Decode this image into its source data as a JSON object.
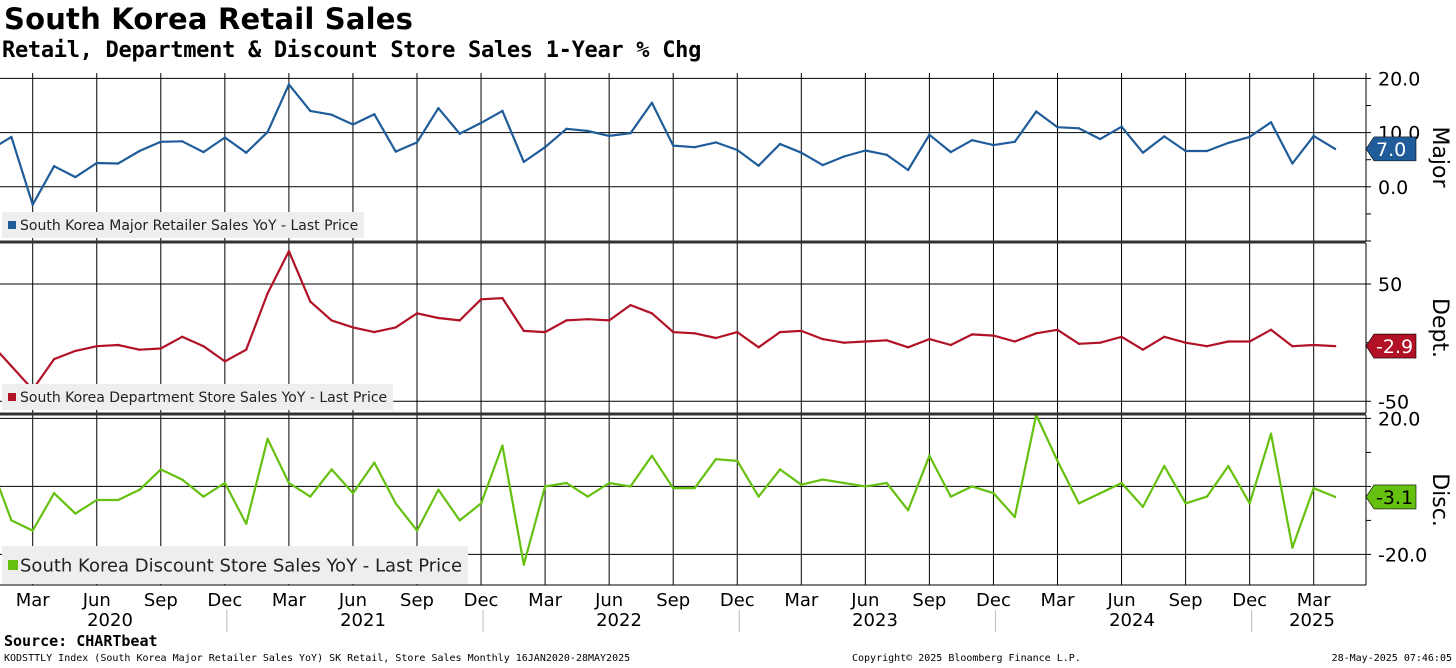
{
  "title": "South Korea Retail Sales",
  "subtitle": "Retail, Department & Discount Store Sales 1-Year % Chg",
  "source": "Source: CHARTbeat",
  "footer": {
    "left": "KODSTTLY Index (South Korea Major Retailer Sales YoY) SK Retail, Store Sales  Monthly 16JAN2020-28MAY2025",
    "middle": "Copyright© 2025 Bloomberg Finance L.P.",
    "right": "28-May-2025 07:46:05"
  },
  "chart_data": {
    "type": "line",
    "x_start": "2020-01",
    "month_labels": [
      "Mar",
      "Jun",
      "Sep",
      "Dec",
      "Mar",
      "Jun",
      "Sep",
      "Dec",
      "Mar",
      "Jun",
      "Sep",
      "Dec",
      "Mar",
      "Jun",
      "Sep",
      "Dec",
      "Mar",
      "Jun",
      "Sep",
      "Dec",
      "Mar"
    ],
    "years": [
      "2020",
      "2021",
      "2022",
      "2023",
      "2024",
      "2025"
    ],
    "panels": [
      {
        "name": "Major",
        "legend": "South Korea Major Retailer Sales YoY - Last Price",
        "color": "#1f5c99",
        "ylim": [
          -10,
          21
        ],
        "ticks": [
          0,
          10,
          20
        ],
        "tick_labels": [
          "0.0",
          "10.0",
          "20.0"
        ],
        "last_value": 7.0,
        "last_label": "7.0",
        "values": [
          6.8,
          9.2,
          -3.3,
          3.8,
          1.8,
          4.4,
          4.3,
          6.6,
          8.3,
          8.4,
          6.4,
          9.1,
          6.3,
          10.1,
          18.9,
          14.0,
          13.3,
          11.5,
          13.4,
          6.5,
          8.2,
          14.5,
          9.8,
          11.8,
          14.0,
          4.6,
          7.3,
          10.7,
          10.3,
          9.4,
          9.9,
          15.5,
          7.6,
          7.3,
          8.2,
          6.8,
          3.9,
          7.9,
          6.3,
          4.0,
          5.6,
          6.7,
          5.9,
          3.1,
          9.6,
          6.4,
          8.6,
          7.7,
          8.3,
          13.9,
          11.0,
          10.8,
          8.8,
          11.1,
          6.3,
          9.3,
          6.6,
          6.6,
          8.1,
          9.2,
          11.9,
          4.3,
          9.4,
          7.0
        ]
      },
      {
        "name": "Dept.",
        "legend": "South Korea Department Store Sales YoY - Last Price",
        "color": "#b11226",
        "ylim": [
          -60,
          85
        ],
        "ticks": [
          -50,
          50
        ],
        "tick_labels": [
          "-50",
          "50"
        ],
        "last_value": -2.9,
        "last_label": "-2.9",
        "values": [
          0.0,
          -20.0,
          -40.0,
          -14.0,
          -7.0,
          -3.0,
          -2.0,
          -6.0,
          -5.0,
          5.0,
          -3.0,
          -16.0,
          -6.0,
          42.0,
          78.0,
          35.0,
          19.0,
          13.0,
          9.0,
          13.0,
          25.0,
          21.0,
          19.0,
          37.0,
          38.0,
          10.0,
          9.0,
          19.0,
          20.0,
          19.0,
          32.0,
          25.0,
          9.0,
          8.0,
          4.0,
          9.0,
          -4.0,
          9.0,
          10.0,
          3.0,
          0.0,
          1.0,
          2.0,
          -4.0,
          3.0,
          -2.0,
          7.0,
          6.0,
          1.0,
          8.0,
          11.0,
          -1.0,
          0.0,
          5.0,
          -6.0,
          5.0,
          0.0,
          -3.0,
          1.0,
          1.0,
          11.0,
          -3.0,
          -2.0,
          -2.9
        ]
      },
      {
        "name": "Disc.",
        "legend": "South Korea Discount Store Sales YoY - Last Price",
        "color": "#66c010",
        "ylim": [
          -29,
          21
        ],
        "ticks": [
          -20,
          0,
          20
        ],
        "tick_labels": [
          "-20.0",
          "",
          "20.0"
        ],
        "last_value": -3.1,
        "last_label": "-3.1",
        "values": [
          7.0,
          -10.0,
          -13.0,
          -2.0,
          -8.0,
          -4.0,
          -4.0,
          -1.0,
          5.0,
          2.0,
          -3.0,
          1.0,
          -11.0,
          14.0,
          1.0,
          -3.0,
          5.0,
          -2.0,
          7.0,
          -5.0,
          -13.0,
          -1.0,
          -10.0,
          -5.0,
          12.0,
          -23.0,
          0.0,
          1.0,
          -3.0,
          1.0,
          0.0,
          9.0,
          -0.5,
          -0.5,
          8.0,
          7.5,
          -3.0,
          5.0,
          0.5,
          2.0,
          1.0,
          0.0,
          1.0,
          -7.0,
          9.0,
          -3.0,
          0.0,
          -2.0,
          -9.0,
          21.0,
          7.5,
          -5.0,
          -2.0,
          1.0,
          -6.0,
          6.0,
          -5.0,
          -3.0,
          6.0,
          -5.0,
          15.5,
          -18.0,
          -0.5,
          -3.1
        ]
      }
    ]
  }
}
